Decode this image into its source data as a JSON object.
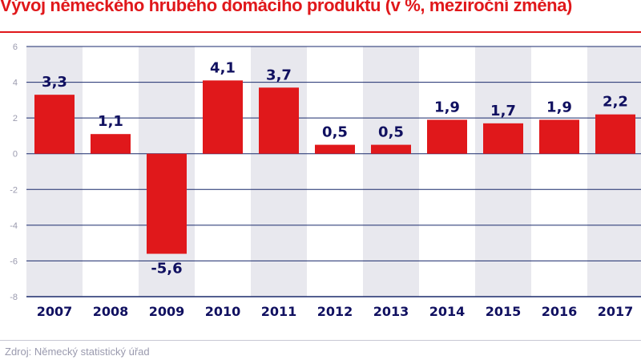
{
  "chart_data": {
    "type": "bar",
    "title": "Vývoj německého hrubého domácího produktu (v %, meziroční změna)",
    "categories": [
      "2007",
      "2008",
      "2009",
      "2010",
      "2011",
      "2012",
      "2013",
      "2014",
      "2015",
      "2016",
      "2017"
    ],
    "values": [
      3.3,
      1.1,
      -5.6,
      4.1,
      3.7,
      0.5,
      0.5,
      1.9,
      1.7,
      1.9,
      2.2
    ],
    "data_labels": [
      "3,3",
      "1,1",
      "-5,6",
      "4,1",
      "3,7",
      "0,5",
      "0,5",
      "1,9",
      "1,7",
      "1,9",
      "2,2"
    ],
    "ylim": [
      -8,
      6
    ],
    "yticks": [
      6,
      4,
      2,
      0,
      -2,
      -4,
      -6,
      -8
    ],
    "grid": true,
    "alternating_column_shading": true,
    "colors": {
      "bar": "#e0181b",
      "label": "#101060",
      "grid": "#1a2a6c",
      "shade": "#e8e8ee",
      "tick": "#9a9aae"
    }
  },
  "source": "Zdroj: Německý statistický úřad"
}
